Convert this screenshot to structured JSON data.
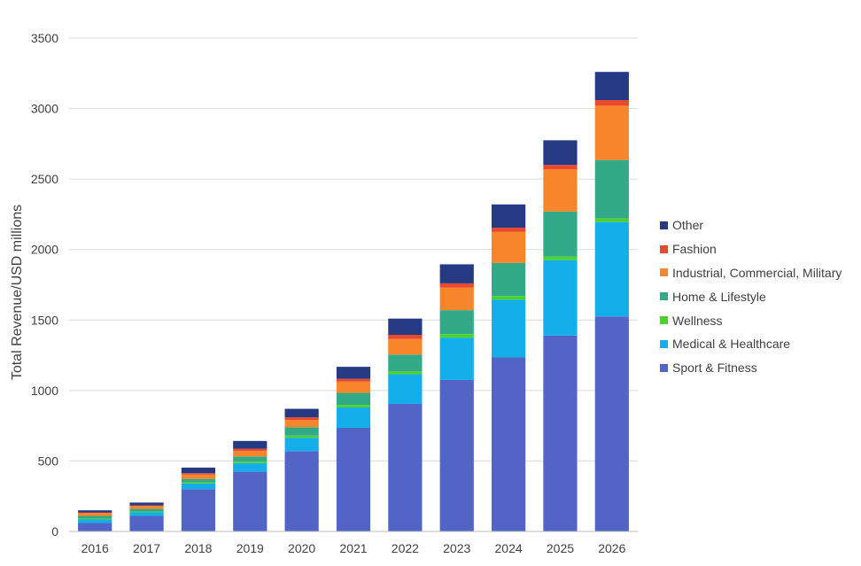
{
  "chart_data": {
    "type": "bar",
    "stacked": true,
    "title": "",
    "xlabel": "",
    "ylabel": "Total Revenue/USD millions",
    "ylim": [
      0,
      3500
    ],
    "yticks": [
      0,
      500,
      1000,
      1500,
      2000,
      2500,
      3000,
      3500
    ],
    "grid": true,
    "legend_position": "right",
    "categories": [
      "2016",
      "2017",
      "2018",
      "2019",
      "2020",
      "2021",
      "2022",
      "2023",
      "2024",
      "2025",
      "2026"
    ],
    "series": [
      {
        "name": "Sport & Fitness",
        "color": "#5264c5",
        "values": [
          60,
          110,
          300,
          425,
          570,
          735,
          905,
          1075,
          1235,
          1390,
          1525
        ]
      },
      {
        "name": "Medical & Healthcare",
        "color": "#14aeea",
        "values": [
          25,
          25,
          40,
          60,
          95,
          145,
          210,
          300,
          410,
          535,
          670
        ]
      },
      {
        "name": "Wellness",
        "color": "#4bd22d",
        "values": [
          5,
          5,
          8,
          12,
          15,
          18,
          20,
          25,
          25,
          25,
          25
        ]
      },
      {
        "name": "Home & Lifestyle",
        "color": "#32aa87",
        "values": [
          20,
          20,
          25,
          35,
          60,
          85,
          120,
          170,
          235,
          320,
          415
        ]
      },
      {
        "name": "Industrial, Commercial, Military",
        "color": "#f7862a",
        "values": [
          20,
          20,
          30,
          40,
          50,
          80,
          110,
          160,
          220,
          300,
          385
        ]
      },
      {
        "name": "Fashion",
        "color": "#e84a2e",
        "values": [
          5,
          5,
          10,
          15,
          20,
          20,
          30,
          30,
          30,
          30,
          40
        ]
      },
      {
        "name": "Other",
        "color": "#263983",
        "values": [
          15,
          20,
          40,
          55,
          60,
          85,
          115,
          135,
          165,
          175,
          200
        ]
      }
    ],
    "legend_order": [
      "Other",
      "Fashion",
      "Industrial, Commercial, Military",
      "Home & Lifestyle",
      "Wellness",
      "Medical & Healthcare",
      "Sport & Fitness"
    ]
  }
}
